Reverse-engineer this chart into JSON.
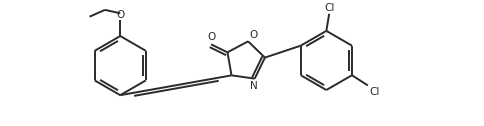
{
  "background_color": "#ffffff",
  "line_color": "#2a2a2a",
  "line_width": 1.4,
  "figsize": [
    4.85,
    1.26
  ],
  "dpi": 100,
  "xlim": [
    -4.6,
    2.8
  ],
  "ylim": [
    -1.05,
    1.1
  ]
}
